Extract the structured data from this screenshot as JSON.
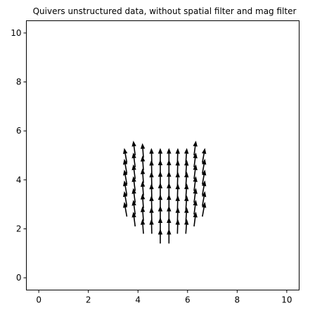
{
  "chart_data": {
    "type": "quiver",
    "title": "Quivers unstructured data, without spatial filter and mag filter",
    "xlabel": "",
    "ylabel": "",
    "xlim": [
      -0.5,
      10.5
    ],
    "ylim": [
      -0.5,
      10.5
    ],
    "xticks": [
      0,
      2,
      4,
      6,
      8,
      10
    ],
    "yticks": [
      0,
      2,
      4,
      6,
      8,
      10
    ],
    "grid": false,
    "legend": "none",
    "arrow_color": "#000000",
    "u_over_v_scale": 0.35,
    "columns": [
      {
        "x": 3.5,
        "tip_y_top": 5.3,
        "tip_y_bottom": 3.1,
        "count": 6,
        "tilt": -0.25
      },
      {
        "x": 3.85,
        "tip_y_top": 5.6,
        "tip_y_bottom": 2.7,
        "count": 7,
        "tilt": -0.18
      },
      {
        "x": 4.2,
        "tip_y_top": 5.5,
        "tip_y_bottom": 2.4,
        "count": 7,
        "tilt": -0.1
      },
      {
        "x": 4.55,
        "tip_y_top": 5.3,
        "tip_y_bottom": 2.4,
        "count": 7,
        "tilt": -0.04
      },
      {
        "x": 4.9,
        "tip_y_top": 5.3,
        "tip_y_bottom": 2.0,
        "count": 8,
        "tilt": 0.0
      },
      {
        "x": 5.25,
        "tip_y_top": 5.3,
        "tip_y_bottom": 2.0,
        "count": 8,
        "tilt": 0.0
      },
      {
        "x": 5.6,
        "tip_y_top": 5.3,
        "tip_y_bottom": 2.4,
        "count": 7,
        "tilt": 0.04
      },
      {
        "x": 5.95,
        "tip_y_top": 5.3,
        "tip_y_bottom": 2.4,
        "count": 7,
        "tilt": 0.1
      },
      {
        "x": 6.3,
        "tip_y_top": 5.6,
        "tip_y_bottom": 2.7,
        "count": 7,
        "tilt": 0.18
      },
      {
        "x": 6.65,
        "tip_y_top": 5.3,
        "tip_y_bottom": 3.1,
        "count": 6,
        "tilt": 0.25
      }
    ],
    "arrow_length": 0.6
  }
}
